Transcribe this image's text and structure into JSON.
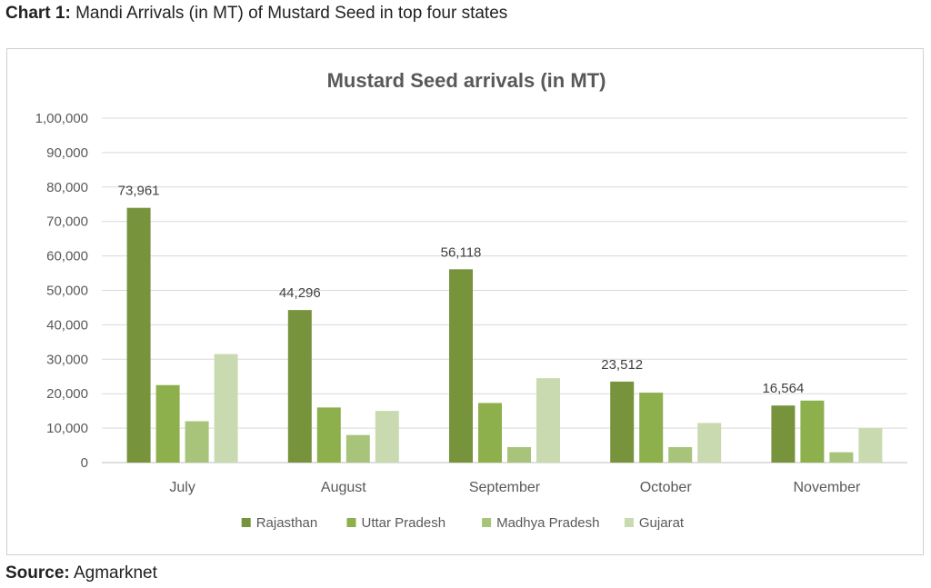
{
  "caption": {
    "prefix": "Chart 1:",
    "text": " Mandi Arrivals (in MT) of Mustard Seed in top four states"
  },
  "source": {
    "prefix": "Source:",
    "text": " Agmarknet"
  },
  "colors": {
    "Rajasthan": "#77933c",
    "Uttar Pradesh": "#8db04d",
    "Madhya Pradesh": "#a7c47a",
    "Gujarat": "#c9dab0"
  },
  "chart_data": {
    "type": "bar",
    "title": "Mustard Seed arrivals (in MT)",
    "xlabel": "",
    "ylabel": "",
    "ylim": [
      0,
      100000
    ],
    "yticks": [
      0,
      10000,
      20000,
      30000,
      40000,
      50000,
      60000,
      70000,
      80000,
      90000,
      100000
    ],
    "ytick_labels": [
      "0",
      "10,000",
      "20,000",
      "30,000",
      "40,000",
      "50,000",
      "60,000",
      "70,000",
      "80,000",
      "90,000",
      "1,00,000"
    ],
    "grid": true,
    "legend": "bottom",
    "categories": [
      "July",
      "August",
      "September",
      "October",
      "November"
    ],
    "series": [
      {
        "name": "Rajasthan",
        "values": [
          73961,
          44296,
          56118,
          23512,
          16564
        ],
        "data_labels": [
          "73,961",
          "44,296",
          "56,118",
          "23,512",
          "16,564"
        ]
      },
      {
        "name": "Uttar Pradesh",
        "values": [
          22500,
          16000,
          17300,
          20300,
          18000
        ]
      },
      {
        "name": "Madhya Pradesh",
        "values": [
          12000,
          8000,
          4500,
          4500,
          3000
        ]
      },
      {
        "name": "Gujarat",
        "values": [
          31500,
          15000,
          24500,
          11500,
          10000
        ]
      }
    ]
  }
}
